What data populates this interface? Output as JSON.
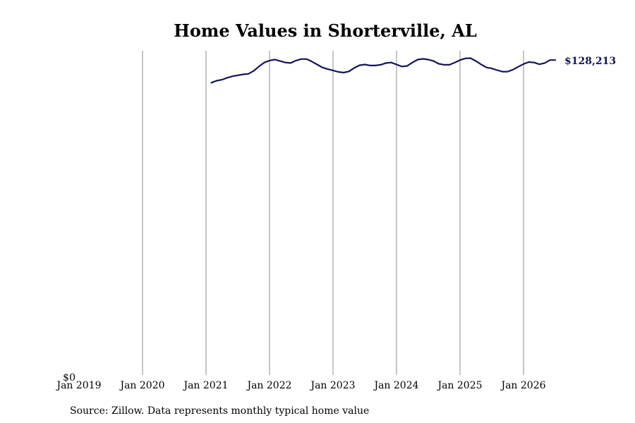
{
  "chart_data": {
    "type": "line",
    "title": "Home Values in Shorterville, AL",
    "xlabel": "",
    "ylabel": "",
    "source": "Source: Zillow. Data represents monthly typical home value",
    "x_ticks": [
      "Jan 2019",
      "Jan 2020",
      "Jan 2021",
      "Jan 2022",
      "Jan 2023",
      "Jan 2024",
      "Jan 2025",
      "Jan 2026"
    ],
    "y_ticks": [
      {
        "value": 0,
        "label": "$0"
      }
    ],
    "ylim": [
      0,
      132000
    ],
    "xlim": [
      "2019-01",
      "2026-10"
    ],
    "grid": "vertical",
    "line_color": "#14145a",
    "end_label": "$128,213",
    "series": [
      {
        "x": [
          "2021-02",
          "2021-03",
          "2021-04",
          "2021-05",
          "2021-06",
          "2021-07",
          "2021-08",
          "2021-09",
          "2021-10",
          "2021-11",
          "2021-12",
          "2022-01",
          "2022-02",
          "2022-03",
          "2022-04",
          "2022-05",
          "2022-06",
          "2022-07",
          "2022-08",
          "2022-09",
          "2022-10",
          "2022-11",
          "2022-12",
          "2023-01",
          "2023-02",
          "2023-03",
          "2023-04",
          "2023-05",
          "2023-06",
          "2023-07",
          "2023-08",
          "2023-09",
          "2023-10",
          "2023-11",
          "2023-12",
          "2024-01",
          "2024-02",
          "2024-03",
          "2024-04",
          "2024-05",
          "2024-06",
          "2024-07",
          "2024-08",
          "2024-09",
          "2024-10",
          "2024-11",
          "2024-12",
          "2025-01",
          "2025-02",
          "2025-03",
          "2025-04",
          "2025-05",
          "2025-06",
          "2025-07",
          "2025-08",
          "2025-09",
          "2025-10",
          "2025-11",
          "2025-12",
          "2026-01",
          "2026-02",
          "2026-03",
          "2026-04",
          "2026-05",
          "2026-06",
          "2026-07"
        ],
        "y": [
          119000,
          119800,
          120200,
          121000,
          121600,
          122000,
          122400,
          122600,
          123800,
          125600,
          127200,
          128000,
          128400,
          127800,
          127200,
          127000,
          128000,
          128600,
          128600,
          127600,
          126400,
          125200,
          124500,
          124000,
          123400,
          123100,
          123600,
          125000,
          126100,
          126400,
          126000,
          126000,
          126300,
          127000,
          127200,
          126400,
          125600,
          125800,
          127200,
          128400,
          128700,
          128400,
          127800,
          126700,
          126300,
          126300,
          127200,
          128200,
          128900,
          129000,
          127800,
          126400,
          125200,
          124800,
          124100,
          123500,
          123500,
          124300,
          125500,
          126600,
          127400,
          127200,
          126500,
          127000,
          128213,
          128213
        ]
      }
    ]
  }
}
